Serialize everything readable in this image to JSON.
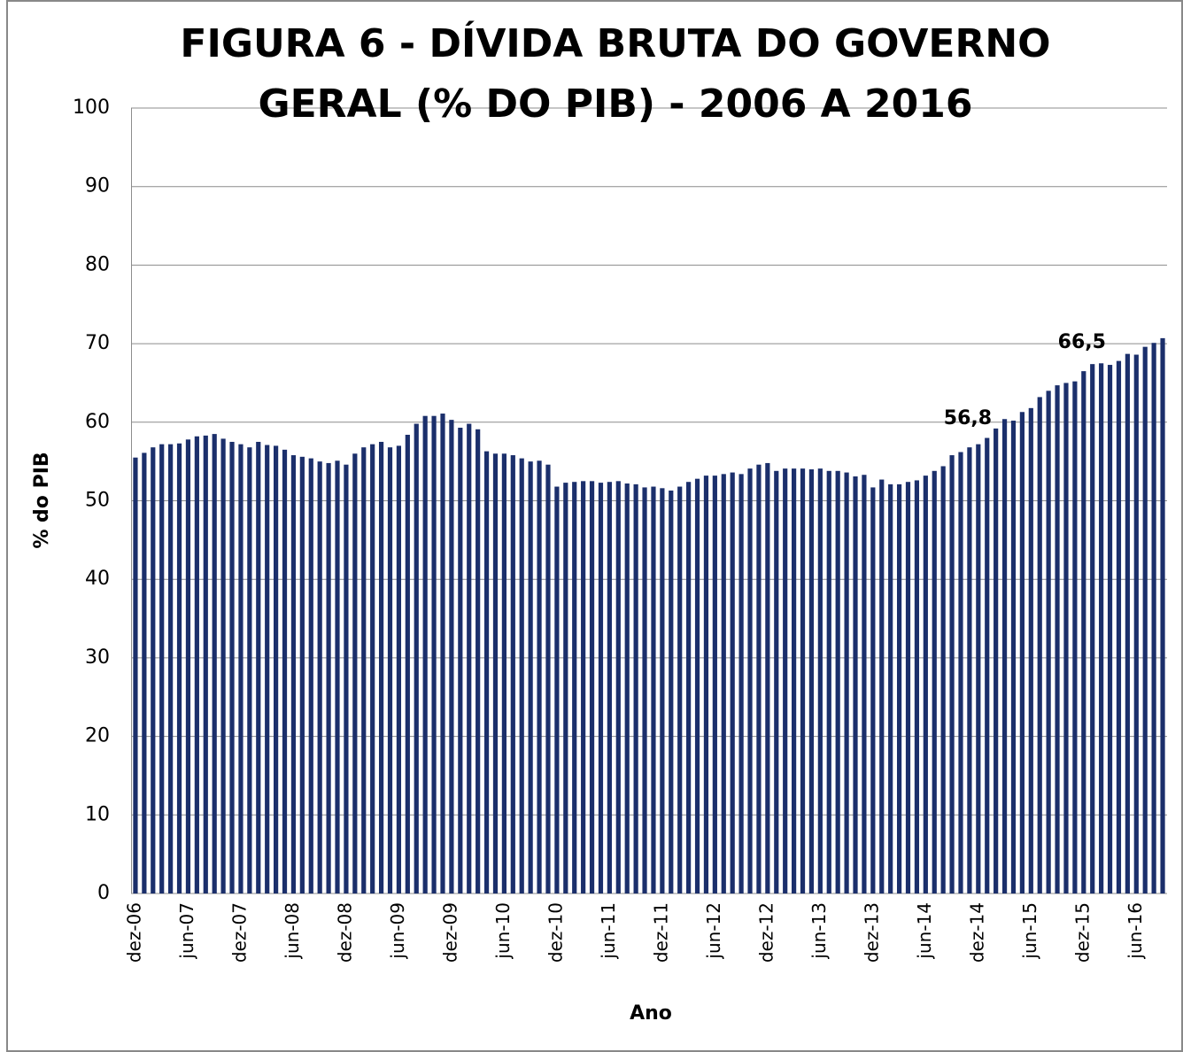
{
  "chart_data": {
    "type": "bar",
    "title": [
      "FIGURA 6 -  DÍVIDA BRUTA DO GOVERNO",
      "GERAL (% DO PIB) - 2006 A 2016"
    ],
    "y_label": "% do PIB",
    "x_label": "Ano",
    "categories": [
      "dez-06",
      null,
      null,
      null,
      null,
      null,
      "jun-07",
      null,
      null,
      null,
      null,
      null,
      "dez-07",
      null,
      null,
      null,
      null,
      null,
      "jun-08",
      null,
      null,
      null,
      null,
      null,
      "dez-08",
      null,
      null,
      null,
      null,
      null,
      "jun-09",
      null,
      null,
      null,
      null,
      null,
      "dez-09",
      null,
      null,
      null,
      null,
      null,
      "jun-10",
      null,
      null,
      null,
      null,
      null,
      "dez-10",
      null,
      null,
      null,
      null,
      null,
      "jun-11",
      null,
      null,
      null,
      null,
      null,
      "dez-11",
      null,
      null,
      null,
      null,
      null,
      "jun-12",
      null,
      null,
      null,
      null,
      null,
      "dez-12",
      null,
      null,
      null,
      null,
      null,
      "jun-13",
      null,
      null,
      null,
      null,
      null,
      "dez-13",
      null,
      null,
      null,
      null,
      null,
      "jun-14",
      null,
      null,
      null,
      null,
      null,
      "dez-14",
      null,
      null,
      null,
      null,
      null,
      "jun-15",
      null,
      null,
      null,
      null,
      null,
      "dez-15",
      null,
      null,
      null,
      null,
      null,
      "jun-16",
      null,
      null,
      null
    ],
    "values": [
      55.5,
      56.1,
      56.8,
      57.2,
      57.2,
      57.3,
      57.8,
      58.2,
      58.3,
      58.5,
      57.9,
      57.5,
      57.2,
      56.8,
      57.5,
      57.1,
      57.0,
      56.5,
      55.8,
      55.6,
      55.4,
      55.0,
      54.8,
      55.1,
      54.6,
      56.0,
      56.8,
      57.2,
      57.5,
      56.8,
      57.0,
      58.4,
      59.8,
      60.8,
      60.8,
      61.1,
      60.3,
      59.3,
      59.8,
      59.1,
      56.3,
      56.0,
      56.0,
      55.8,
      55.4,
      55.0,
      55.1,
      54.6,
      51.8,
      52.3,
      52.4,
      52.5,
      52.5,
      52.3,
      52.4,
      52.5,
      52.2,
      52.1,
      51.7,
      51.8,
      51.6,
      51.3,
      51.8,
      52.4,
      52.8,
      53.2,
      53.2,
      53.4,
      53.6,
      53.4,
      54.1,
      54.6,
      54.8,
      53.8,
      54.1,
      54.1,
      54.1,
      54.0,
      54.1,
      53.8,
      53.8,
      53.6,
      53.1,
      53.3,
      51.7,
      52.7,
      52.1,
      52.1,
      52.4,
      52.6,
      53.2,
      53.8,
      54.4,
      55.8,
      56.2,
      56.8,
      57.2,
      58.0,
      59.2,
      60.4,
      60.2,
      61.3,
      61.8,
      63.2,
      64.0,
      64.7,
      65.0,
      65.2,
      66.5,
      67.4,
      67.5,
      67.3,
      67.8,
      68.7,
      68.6,
      69.6,
      70.1,
      70.7
    ],
    "value_labels": [
      null,
      null,
      null,
      null,
      null,
      null,
      null,
      null,
      null,
      null,
      null,
      null,
      null,
      null,
      null,
      null,
      null,
      null,
      null,
      null,
      null,
      null,
      null,
      null,
      null,
      null,
      null,
      null,
      null,
      null,
      null,
      null,
      null,
      null,
      null,
      null,
      null,
      null,
      null,
      null,
      null,
      null,
      null,
      null,
      null,
      null,
      null,
      null,
      null,
      null,
      null,
      null,
      null,
      null,
      null,
      null,
      null,
      null,
      null,
      null,
      null,
      null,
      null,
      null,
      null,
      null,
      null,
      null,
      null,
      null,
      null,
      null,
      null,
      null,
      null,
      null,
      null,
      null,
      null,
      null,
      null,
      null,
      null,
      null,
      null,
      null,
      null,
      null,
      null,
      null,
      null,
      null,
      null,
      null,
      null,
      "56,8",
      null,
      null,
      null,
      null,
      null,
      null,
      null,
      null,
      null,
      null,
      null,
      null,
      "66,5",
      null,
      null,
      null,
      null,
      null,
      null,
      null,
      null,
      null
    ],
    "color": "#1b2f6b",
    "ylim": [
      0,
      100
    ],
    "yticks": [
      0,
      10,
      20,
      30,
      40,
      50,
      60,
      70,
      80,
      90,
      100
    ],
    "grid": true
  }
}
